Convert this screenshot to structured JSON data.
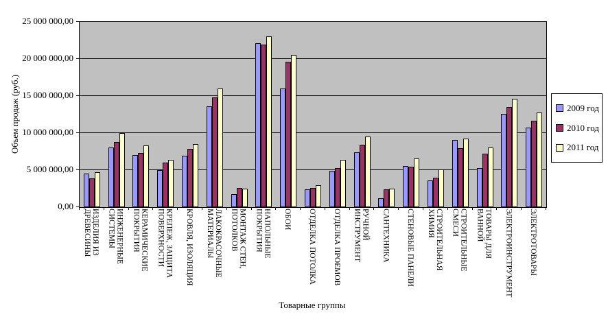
{
  "chart_data": {
    "type": "bar",
    "title": "",
    "xlabel": "Товарные группы",
    "ylabel": "Объем продаж (руб.)",
    "ylim": [
      0,
      25000000
    ],
    "ytick_step": 5000000,
    "ytick_labels": [
      "0,00",
      "5 000 000,00",
      "10 000 000,00",
      "15 000 000,00",
      "20 000 000,00",
      "25 000 000,00"
    ],
    "grid": true,
    "legend_position": "right",
    "plot_bg_color": "#C0C0C0",
    "gridline_color": "#000000",
    "bar_border_color": "#000000",
    "categories": [
      "ИЗДЕЛИЯ ИЗ\nДРЕВЕСИНЫ",
      "ИНЖЕНЕРНЫЕ\nСИСТЕМЫ",
      "КЕРАМИЧЕСКИЕ\nПОКРЫТИЯ",
      "КРЕПЕЖ, ЗАЩИТА\nПОВЕРХНОСТИ",
      "КРОВЛЯ, ИЗОЛЯЦИЯ",
      "ЛАКОКРАСОЧНЫЕ\nМАТЕРИАЛЫ",
      "МОНТАЖ СТЕН,\nПОТОЛКОВ",
      "НАПОЛЬНЫЕ\nПОКРЫТИЯ",
      "ОБОИ",
      "ОТДЕЛКА ПОТОЛКА",
      "ОТДЕЛКА ПРОЕМОВ",
      "РУЧНОЙ ИНСТРУМЕНТ",
      "САНТЕХНИКА",
      "СТЕНОВЫЕ ПАНЕЛИ",
      "СТРОИТЕЛЬНАЯ\nХИМИЯ",
      "СТРОИТЕЛЬНЫЕ\nСМЕСИ",
      "ТОВАРЫ ДЛЯ ВАННОЙ",
      "ЭЛЕКТРОИНСТРУМЕНТ",
      "ЭЛЕКТРОТОВАРЫ"
    ],
    "series": [
      {
        "name": "2009 год",
        "color": "#9999FF",
        "values": [
          4500000,
          8100000,
          7000000,
          5000000,
          6900000,
          13600000,
          1800000,
          22100000,
          16000000,
          2400000,
          4900000,
          7400000,
          1200000,
          5600000,
          3600000,
          9100000,
          5300000,
          12600000,
          10700000
        ]
      },
      {
        "name": "2010 год",
        "color": "#993366",
        "values": [
          3900000,
          8800000,
          7300000,
          6000000,
          7900000,
          14800000,
          2600000,
          21900000,
          19600000,
          2600000,
          5300000,
          8400000,
          2400000,
          5500000,
          4000000,
          8000000,
          7200000,
          13500000,
          11700000
        ]
      },
      {
        "name": "2011 год",
        "color": "#FFFFCC",
        "values": [
          4700000,
          10000000,
          8300000,
          6400000,
          8500000,
          16000000,
          2500000,
          23100000,
          20600000,
          3000000,
          6400000,
          9500000,
          2500000,
          6600000,
          5100000,
          9300000,
          8100000,
          14600000,
          12800000
        ]
      }
    ]
  }
}
